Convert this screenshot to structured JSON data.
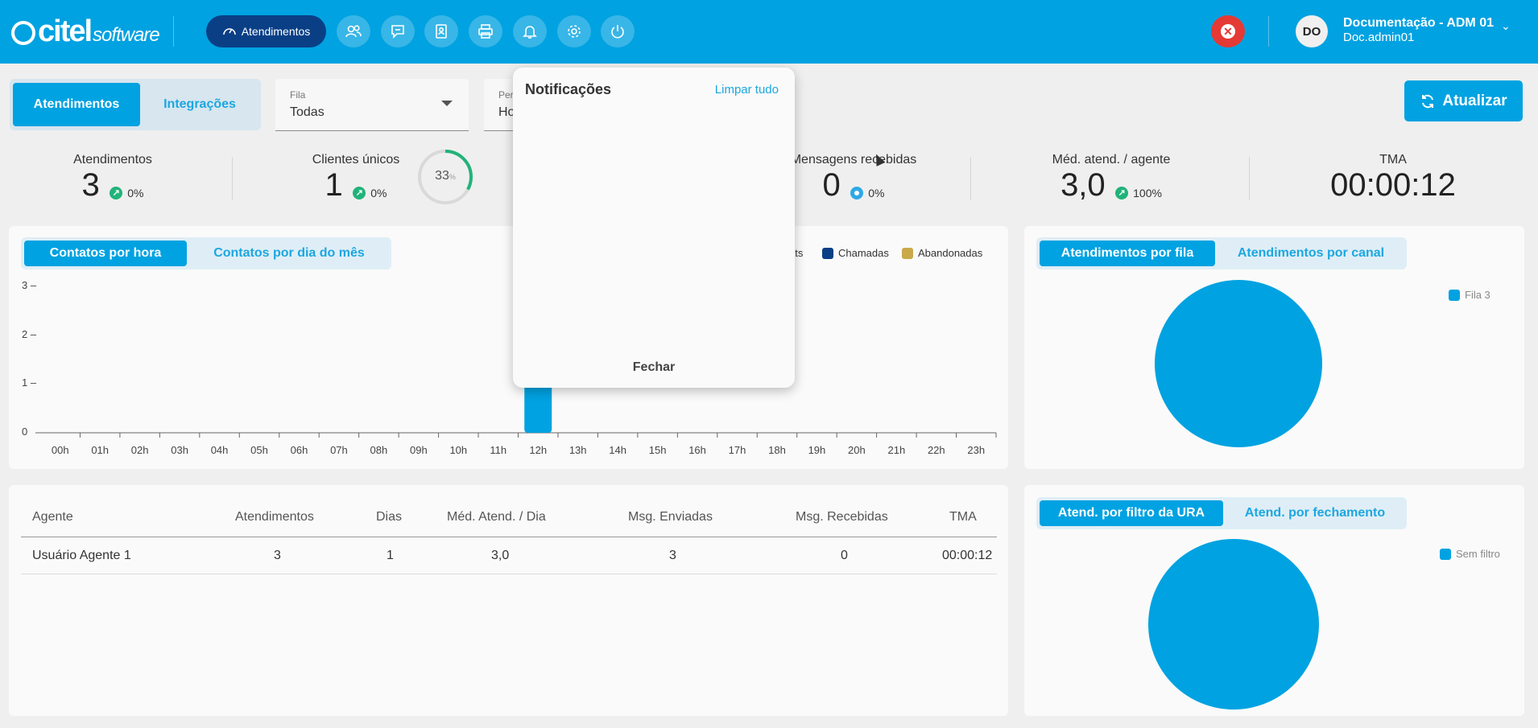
{
  "brand": {
    "name": "citel",
    "suffix": "software"
  },
  "nav": {
    "active_label": "Atendimentos",
    "icons": [
      "dashboard-icon",
      "users-icon",
      "chat-icon",
      "contacts-icon",
      "printer-icon",
      "bell-icon",
      "gear-icon",
      "power-icon"
    ]
  },
  "user": {
    "initials": "DO",
    "name": "Documentação - ADM 01",
    "login": "Doc.admin01"
  },
  "view_tabs": {
    "atendimentos": "Atendimentos",
    "integracoes": "Integrações"
  },
  "filters": {
    "fila": {
      "label": "Fila",
      "value": "Todas"
    },
    "periodo": {
      "label": "Per",
      "value": "Ho"
    }
  },
  "refresh_label": "Atualizar",
  "stats": {
    "atendimentos": {
      "title": "Atendimentos",
      "value": "3",
      "pct": "0%"
    },
    "clientes": {
      "title": "Clientes únicos",
      "value": "1",
      "pct": "0%",
      "ring_value": "33",
      "ring_unit": "%",
      "ring_fraction": 0.33
    },
    "mensagens": {
      "title": "Mensagens recebidas",
      "value": "0",
      "pct": "0%"
    },
    "media": {
      "title": "Méd. atend. / agente",
      "value": "3,0",
      "pct": "100%"
    },
    "tma": {
      "title": "TMA",
      "value": "00:00:12"
    }
  },
  "contacts_chart": {
    "tabs": {
      "hora": "Contatos por hora",
      "dia": "Contatos por dia do mês"
    },
    "legend": [
      {
        "label": "ats",
        "color": "#00a2e1"
      },
      {
        "label": "Chamadas",
        "color": "#0a3f86"
      },
      {
        "label": "Abandonadas",
        "color": "#c9a94a"
      }
    ]
  },
  "chart_data": {
    "type": "bar",
    "categories": [
      "00h",
      "01h",
      "02h",
      "03h",
      "04h",
      "05h",
      "06h",
      "07h",
      "08h",
      "09h",
      "10h",
      "11h",
      "12h",
      "13h",
      "14h",
      "15h",
      "16h",
      "17h",
      "18h",
      "19h",
      "20h",
      "21h",
      "22h",
      "23h"
    ],
    "values": [
      0,
      0,
      0,
      0,
      0,
      0,
      0,
      0,
      0,
      0,
      0,
      0,
      1,
      0,
      0,
      0,
      0,
      0,
      0,
      0,
      0,
      0,
      0,
      0
    ],
    "ylim": [
      0,
      3
    ],
    "yticks": [
      "0",
      "1",
      "2",
      "3"
    ]
  },
  "fila_chart": {
    "tabs": {
      "fila": "Atendimentos por fila",
      "canal": "Atendimentos por canal"
    },
    "legend": "Fila 3",
    "color": "#00a2e1"
  },
  "ura_chart": {
    "tabs": {
      "ura": "Atend. por filtro da URA",
      "fechamento": "Atend. por fechamento"
    },
    "legend": "Sem filtro",
    "color": "#00a2e1"
  },
  "agents_table": {
    "headers": [
      "Agente",
      "Atendimentos",
      "Dias",
      "Méd. Atend. / Dia",
      "Msg. Enviadas",
      "Msg. Recebidas",
      "TMA"
    ],
    "rows": [
      [
        "Usuário Agente 1",
        "3",
        "1",
        "3,0",
        "3",
        "0",
        "00:00:12"
      ]
    ]
  },
  "notifications": {
    "title": "Notificações",
    "clear": "Limpar tudo",
    "close": "Fechar"
  }
}
